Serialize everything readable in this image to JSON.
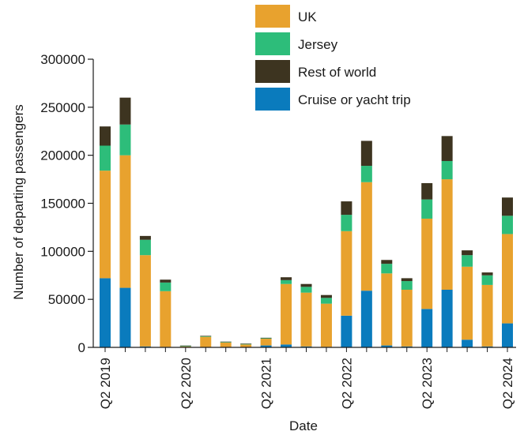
{
  "chart_data": {
    "type": "bar",
    "stacked": true,
    "xlabel": "Date",
    "ylabel": "Number of departing passengers",
    "ylim": [
      0,
      300000
    ],
    "yticks": [
      0,
      50000,
      100000,
      150000,
      200000,
      250000,
      300000
    ],
    "categories": [
      "Q2 2019",
      "Q3 2019",
      "Q4 2019",
      "Q1 2020",
      "Q2 2020",
      "Q3 2020",
      "Q4 2020",
      "Q1 2021",
      "Q2 2021",
      "Q3 2021",
      "Q4 2021",
      "Q1 2022",
      "Q2 2022",
      "Q3 2022",
      "Q4 2022",
      "Q1 2023",
      "Q2 2023",
      "Q3 2023",
      "Q4 2023",
      "Q1 2024",
      "Q2 2024"
    ],
    "xtick_labels": [
      {
        "index": 0,
        "label": "Q2 2019"
      },
      {
        "index": 4,
        "label": "Q2 2020"
      },
      {
        "index": 8,
        "label": "Q2 2021"
      },
      {
        "index": 12,
        "label": "Q2 2022"
      },
      {
        "index": 16,
        "label": "Q2 2023"
      },
      {
        "index": 20,
        "label": "Q2 2024"
      }
    ],
    "series": [
      {
        "name": "Cruise or yacht trip",
        "color": "#0a7bbd",
        "values": [
          72000,
          62000,
          1000,
          500,
          0,
          0,
          0,
          0,
          2000,
          3000,
          1000,
          500,
          33000,
          59000,
          2000,
          1000,
          40000,
          60000,
          8000,
          1000,
          25000
        ]
      },
      {
        "name": "UK",
        "color": "#e8a22e",
        "values": [
          112000,
          138000,
          95000,
          58000,
          1000,
          11000,
          5000,
          3000,
          7000,
          63000,
          56000,
          45000,
          88000,
          113000,
          75000,
          59000,
          94000,
          115000,
          76000,
          64000,
          93000
        ]
      },
      {
        "name": "Jersey",
        "color": "#2dbd7a",
        "values": [
          26000,
          32000,
          16000,
          9000,
          700,
          500,
          500,
          500,
          500,
          4000,
          6000,
          6000,
          17000,
          17000,
          10000,
          9000,
          20000,
          19000,
          12000,
          10000,
          19000
        ]
      },
      {
        "name": "Rest of world",
        "color": "#3d3420",
        "values": [
          20000,
          28000,
          4000,
          3000,
          200,
          500,
          500,
          500,
          500,
          3000,
          3000,
          3000,
          14000,
          26000,
          4000,
          3000,
          17000,
          26000,
          5000,
          3000,
          19000
        ]
      }
    ],
    "legend": {
      "placement": "top-center",
      "order": [
        "UK",
        "Jersey",
        "Rest of world",
        "Cruise or yacht trip"
      ]
    }
  }
}
